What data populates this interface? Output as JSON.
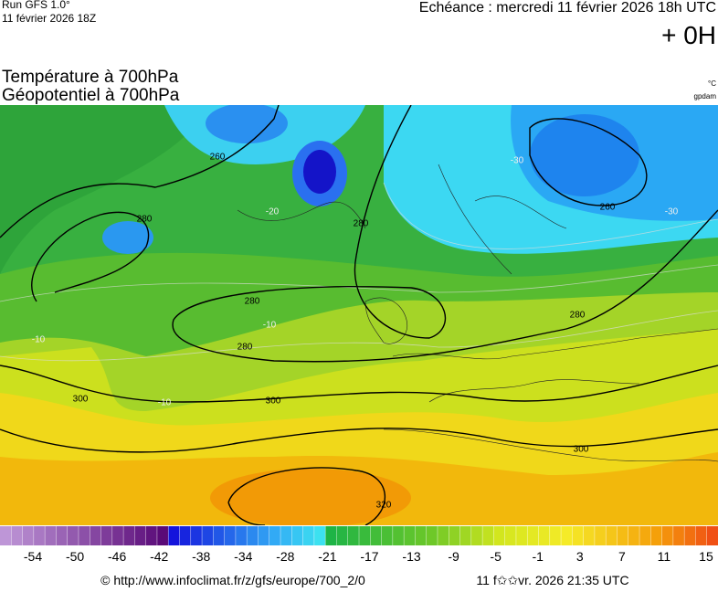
{
  "header": {
    "run": "Run GFS 1.0°",
    "run_date": "11 février 2026 18Z",
    "echeance": "Echéance : mercredi 11 février 2026 18h UTC",
    "offset": "+ 0H"
  },
  "titles": [
    "Température à 700hPa",
    "Géopotentiel à 700hPa"
  ],
  "units": [
    "°C",
    "gpdam"
  ],
  "map": {
    "contour_labels": [
      "260",
      "280",
      "-20",
      "280",
      "-30",
      "260",
      "-30",
      "280",
      "-10",
      "280",
      "-10",
      "300",
      "-10",
      "300",
      "280",
      "300",
      "320"
    ]
  },
  "colorbar": {
    "labels": [
      "-54",
      "-50",
      "-46",
      "-42",
      "-38",
      "-34",
      "-28",
      "-21",
      "-17",
      "-13",
      "-9",
      "-5",
      "-1",
      "3",
      "7",
      "11",
      "15"
    ]
  },
  "footer": {
    "url": "© http://www.infoclimat.fr/z/gfs/europe/700_2/0",
    "timestamp": "11 f✩✩vr. 2026 21:35 UTC"
  }
}
